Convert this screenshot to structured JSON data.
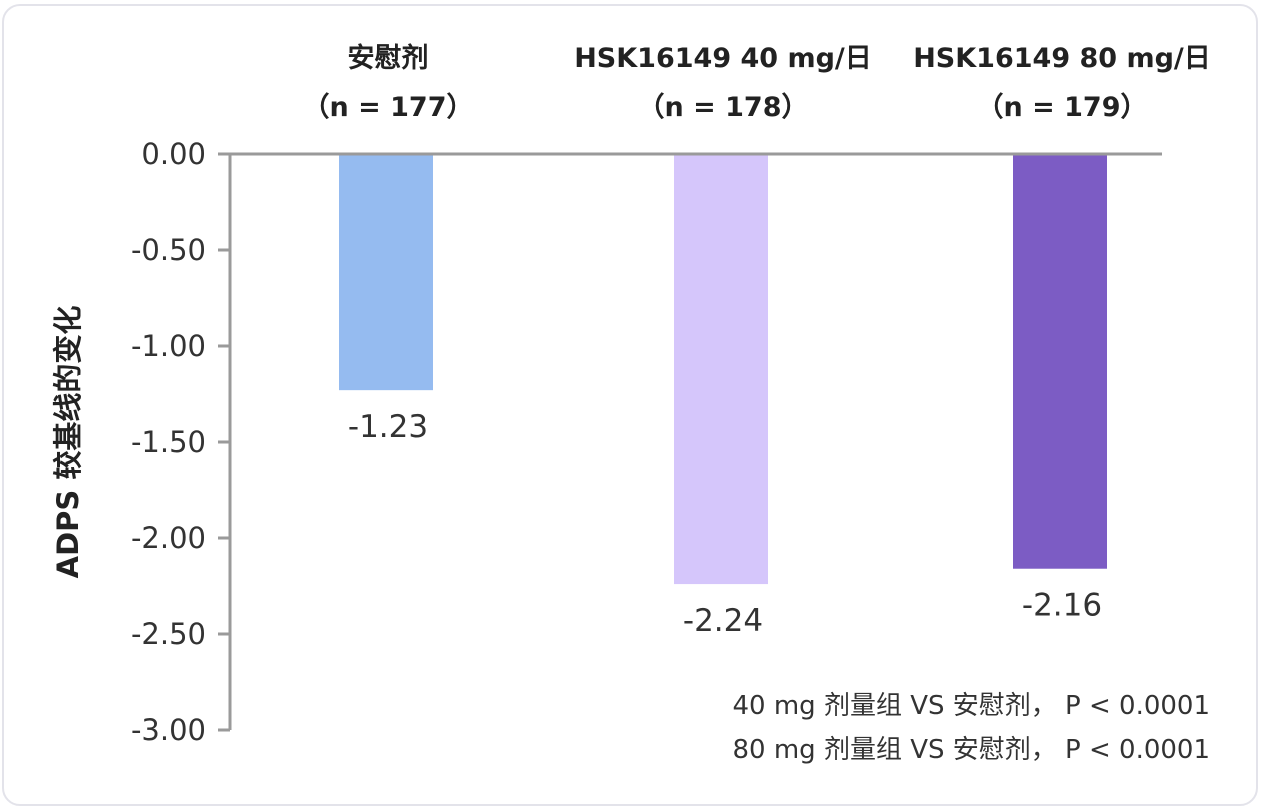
{
  "chart_data": {
    "type": "bar",
    "categories": [
      {
        "name": "安慰剂",
        "n": "（n = 177）"
      },
      {
        "name": "HSK16149 40 mg/日",
        "n": "（n = 178）"
      },
      {
        "name": "HSK16149 80 mg/日",
        "n": "（n = 179）"
      }
    ],
    "values": [
      -1.23,
      -2.24,
      -2.16
    ],
    "value_labels": [
      "-1.23",
      "-2.24",
      "-2.16"
    ],
    "colors": [
      "#95bbf0",
      "#d5c6fb",
      "#7c5cc4"
    ],
    "ylabel": "ADPS 较基线的变化",
    "ylim": [
      -3.0,
      0.0
    ],
    "yticks": [
      0.0,
      -0.5,
      -1.0,
      -1.5,
      -2.0,
      -2.5,
      -3.0
    ],
    "ytick_labels": [
      "0.00",
      "-0.50",
      "-1.00",
      "-1.50",
      "-2.00",
      "-2.50",
      "-3.00"
    ],
    "x_axis_position": "top",
    "grid": false,
    "annotations": [
      "40 mg 剂量组 VS 安慰剂，  P < 0.0001",
      "80 mg 剂量组 VS 安慰剂，  P < 0.0001"
    ]
  }
}
